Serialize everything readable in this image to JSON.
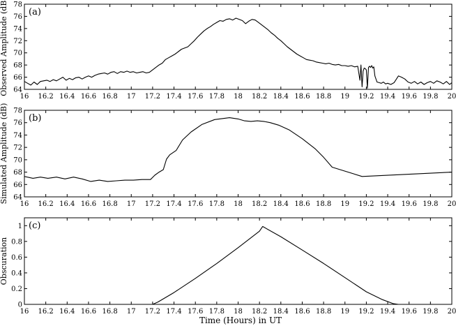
{
  "xlabel": "Time (Hours) in UT",
  "chart_data": [
    {
      "type": "line",
      "panel_label": "(a)",
      "ylabel": "Observed Amplitude (dB)",
      "xlim": [
        16,
        20
      ],
      "ylim": [
        64,
        78
      ],
      "xticks": [
        16,
        16.2,
        16.4,
        16.6,
        16.8,
        17,
        17.2,
        17.4,
        17.6,
        17.8,
        18,
        18.2,
        18.4,
        18.6,
        18.8,
        19,
        19.2,
        19.4,
        19.6,
        19.8,
        20
      ],
      "xtick_labels": [
        "16",
        "16.2",
        "16.4",
        "16.6",
        "16.8",
        "17",
        "17.2",
        "17.4",
        "17.6",
        "17.8",
        "18",
        "18.2",
        "18.4",
        "18.6",
        "18.8",
        "19",
        "19.2",
        "19.4",
        "19.6",
        "19.8",
        "20"
      ],
      "yticks": [
        64,
        66,
        68,
        70,
        72,
        74,
        76,
        78
      ],
      "series": [
        {
          "x": [
            16.0,
            16.03,
            16.06,
            16.09,
            16.12,
            16.15,
            16.18,
            16.21,
            16.24,
            16.27,
            16.3,
            16.33,
            16.36,
            16.39,
            16.42,
            16.45,
            16.48,
            16.51,
            16.54,
            16.57,
            16.6,
            16.63,
            16.66,
            16.69,
            16.72,
            16.75,
            16.78,
            16.81,
            16.84,
            16.87,
            16.9,
            16.93,
            16.96,
            16.99,
            17.02,
            17.05,
            17.08,
            17.11,
            17.14,
            17.17,
            17.2,
            17.23,
            17.26,
            17.29,
            17.32,
            17.35,
            17.38,
            17.41,
            17.44,
            17.47,
            17.5,
            17.53,
            17.56,
            17.59,
            17.62,
            17.65,
            17.68,
            17.71,
            17.74,
            17.77,
            17.8,
            17.83,
            17.86,
            17.89,
            17.92,
            17.95,
            17.98,
            18.01,
            18.04,
            18.07,
            18.1,
            18.13,
            18.16,
            18.19,
            18.22,
            18.25,
            18.28,
            18.31,
            18.34,
            18.37,
            18.4,
            18.43,
            18.46,
            18.49,
            18.52,
            18.55,
            18.58,
            18.61,
            18.64,
            18.67,
            18.7,
            18.73,
            18.76,
            18.79,
            18.82,
            18.85,
            18.88,
            18.91,
            18.94,
            18.97,
            19.0,
            19.03,
            19.06,
            19.09,
            19.12,
            19.14,
            19.15,
            19.16,
            19.17,
            19.18,
            19.19,
            19.2,
            19.21,
            19.22,
            19.23,
            19.24,
            19.25,
            19.26,
            19.27,
            19.28,
            19.3,
            19.32,
            19.34,
            19.36,
            19.38,
            19.4,
            19.43,
            19.46,
            19.5,
            19.53,
            19.56,
            19.59,
            19.62,
            19.65,
            19.68,
            19.71,
            19.74,
            19.77,
            19.8,
            19.83,
            19.86,
            19.89,
            19.92,
            19.95,
            19.98,
            20.0
          ],
          "y": [
            65.3,
            65.0,
            64.7,
            65.2,
            64.8,
            65.3,
            65.4,
            65.5,
            65.3,
            65.6,
            65.4,
            65.7,
            66.0,
            65.5,
            65.8,
            65.6,
            65.9,
            66.0,
            65.7,
            66.0,
            66.2,
            66.0,
            66.3,
            66.5,
            66.6,
            66.7,
            66.5,
            66.8,
            66.9,
            66.6,
            66.9,
            66.8,
            67.0,
            66.8,
            66.9,
            66.7,
            66.8,
            66.9,
            66.7,
            66.8,
            67.2,
            67.6,
            68.0,
            68.3,
            68.9,
            69.2,
            69.5,
            69.8,
            70.2,
            70.6,
            70.8,
            71.0,
            71.5,
            72.0,
            72.6,
            73.1,
            73.6,
            74.0,
            74.3,
            74.7,
            75.0,
            75.3,
            75.2,
            75.5,
            75.6,
            75.4,
            75.7,
            75.5,
            75.3,
            74.8,
            75.2,
            75.5,
            75.4,
            75.0,
            74.6,
            74.2,
            73.8,
            73.3,
            72.9,
            72.4,
            72.0,
            71.5,
            71.0,
            70.6,
            70.2,
            69.8,
            69.5,
            69.2,
            68.9,
            68.8,
            68.7,
            68.5,
            68.4,
            68.3,
            68.2,
            68.3,
            68.1,
            68.0,
            68.1,
            67.9,
            67.9,
            67.8,
            67.9,
            67.7,
            67.8,
            65.5,
            68.0,
            64.4,
            67.0,
            67.5,
            67.4,
            67.2,
            64.2,
            67.6,
            67.8,
            67.6,
            67.9,
            67.5,
            67.7,
            66.2,
            65.2,
            65.1,
            65.0,
            65.2,
            64.9,
            65.0,
            64.8,
            65.1,
            66.2,
            66.0,
            65.7,
            65.2,
            65.0,
            65.3,
            64.9,
            65.2,
            64.8,
            65.1,
            65.3,
            65.0,
            65.4,
            65.2,
            64.9,
            65.3,
            64.8,
            65.1
          ]
        }
      ]
    },
    {
      "type": "line",
      "panel_label": "(b)",
      "ylabel": "Simulated Amplitude (dB)",
      "xlim": [
        16,
        20
      ],
      "ylim": [
        64,
        78
      ],
      "xticks": [
        16,
        16.2,
        16.4,
        16.6,
        16.8,
        17,
        17.2,
        17.4,
        17.6,
        17.8,
        18,
        18.2,
        18.4,
        18.6,
        18.8,
        19,
        19.2,
        19.4,
        19.6,
        19.8,
        20
      ],
      "xtick_labels": [
        "16",
        "16.2",
        "16.4",
        "16.6",
        "16.8",
        "17",
        "17.2",
        "17.4",
        "17.6",
        "17.8",
        "18",
        "18.2",
        "18.4",
        "18.6",
        "18.8",
        "19",
        "19.2",
        "19.4",
        "19.6",
        "19.8",
        "20"
      ],
      "yticks": [
        64,
        66,
        68,
        70,
        72,
        74,
        76,
        78
      ],
      "series": [
        {
          "x": [
            16.0,
            16.08,
            16.15,
            16.22,
            16.3,
            16.38,
            16.46,
            16.54,
            16.62,
            16.7,
            16.78,
            16.86,
            16.94,
            17.02,
            17.1,
            17.18,
            17.22,
            17.26,
            17.3,
            17.33,
            17.36,
            17.42,
            17.48,
            17.56,
            17.66,
            17.78,
            17.92,
            18.0,
            18.06,
            18.12,
            18.18,
            18.24,
            18.3,
            18.38,
            18.48,
            18.6,
            18.72,
            18.8,
            18.88,
            19.16,
            20.0
          ],
          "y": [
            67.3,
            67.0,
            67.2,
            67.0,
            67.2,
            66.9,
            67.2,
            66.9,
            66.5,
            66.7,
            66.5,
            66.6,
            66.7,
            66.7,
            66.8,
            66.8,
            67.5,
            68.0,
            68.4,
            70.1,
            70.8,
            71.5,
            73.2,
            74.5,
            75.7,
            76.5,
            76.8,
            76.6,
            76.3,
            76.2,
            76.3,
            76.2,
            76.0,
            75.6,
            74.8,
            73.4,
            71.8,
            70.4,
            68.8,
            67.3,
            68.0
          ]
        }
      ]
    },
    {
      "type": "line",
      "panel_label": "(c)",
      "ylabel": "Obscuration",
      "xlim": [
        16,
        20
      ],
      "ylim": [
        0,
        1.1
      ],
      "xticks": [
        16,
        16.2,
        16.4,
        16.6,
        16.8,
        17,
        17.2,
        17.4,
        17.6,
        17.8,
        18,
        18.2,
        18.4,
        18.6,
        18.8,
        19,
        19.2,
        19.4,
        19.6,
        19.8,
        20
      ],
      "xtick_labels": [
        "16",
        "16.2",
        "16.4",
        "16.6",
        "16.8",
        "17",
        "17.2",
        "17.4",
        "17.6",
        "17.8",
        "18",
        "18.2",
        "18.4",
        "18.6",
        "18.8",
        "19",
        "19.2",
        "19.4",
        "19.6",
        "19.8",
        "20"
      ],
      "yticks": [
        0,
        0.2,
        0.4,
        0.6,
        0.8,
        1
      ],
      "ytick_labels": [
        "0",
        "0.2",
        "0.4",
        "0.6",
        "0.8",
        "1"
      ],
      "series": [
        {
          "x": [
            17.2,
            17.25,
            17.3,
            17.4,
            17.6,
            17.8,
            18.0,
            18.2,
            18.23,
            18.4,
            18.6,
            18.8,
            19.0,
            19.2,
            19.35,
            19.45,
            19.5
          ],
          "y": [
            0.0,
            0.03,
            0.07,
            0.15,
            0.33,
            0.52,
            0.72,
            0.93,
            0.99,
            0.86,
            0.69,
            0.52,
            0.34,
            0.16,
            0.06,
            0.01,
            0.0
          ]
        }
      ]
    }
  ]
}
